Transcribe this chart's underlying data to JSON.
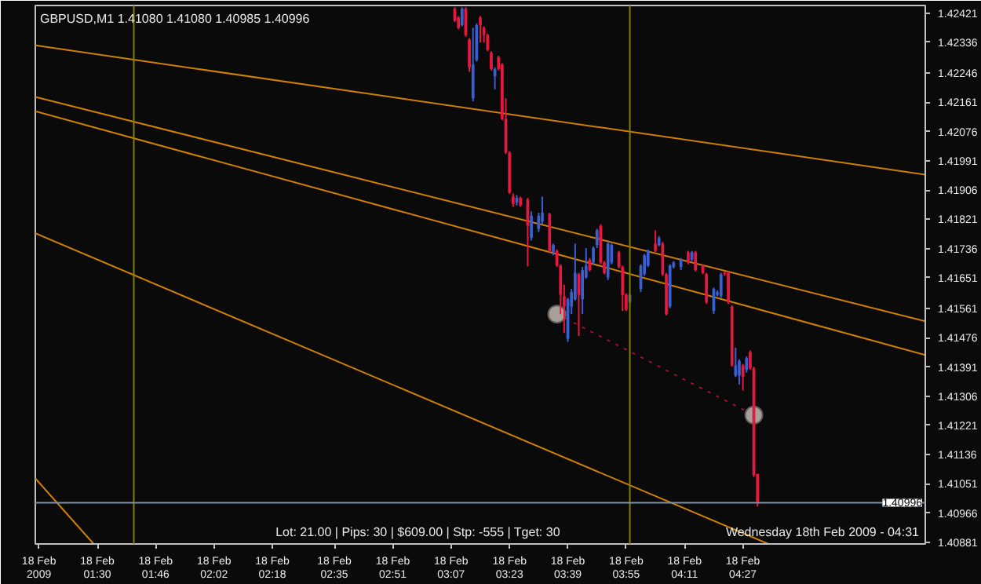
{
  "chart_data": {
    "type": "candlestick",
    "title": "GBPUSD,M1 1.41080 1.41080 1.40985 1.40996",
    "x": [
      "2009-02-18T03:08",
      "2009-02-18T03:09",
      "2009-02-18T03:10",
      "2009-02-18T03:11",
      "2009-02-18T03:12",
      "2009-02-18T03:13",
      "2009-02-18T03:14",
      "2009-02-18T03:15",
      "2009-02-18T03:16",
      "2009-02-18T03:17",
      "2009-02-18T03:18",
      "2009-02-18T03:19",
      "2009-02-18T03:20",
      "2009-02-18T03:21",
      "2009-02-18T03:22",
      "2009-02-18T03:23",
      "2009-02-18T03:24",
      "2009-02-18T03:25",
      "2009-02-18T03:26",
      "2009-02-18T03:28",
      "2009-02-18T03:29",
      "2009-02-18T03:31",
      "2009-02-18T03:32",
      "2009-02-18T03:34",
      "2009-02-18T03:35",
      "2009-02-18T03:36",
      "2009-02-18T03:37",
      "2009-02-18T03:38",
      "2009-02-18T03:39",
      "2009-02-18T03:40",
      "2009-02-18T03:41",
      "2009-02-18T03:42",
      "2009-02-18T03:43",
      "2009-02-18T03:44",
      "2009-02-18T03:45",
      "2009-02-18T03:46",
      "2009-02-18T03:47",
      "2009-02-18T03:48",
      "2009-02-18T03:49",
      "2009-02-18T03:50",
      "2009-02-18T03:51",
      "2009-02-18T03:53",
      "2009-02-18T03:54",
      "2009-02-18T03:55",
      "2009-02-18T03:56",
      "2009-02-18T03:59",
      "2009-02-18T04:00",
      "2009-02-18T04:01",
      "2009-02-18T04:03",
      "2009-02-18T04:04",
      "2009-02-18T04:05",
      "2009-02-18T04:06",
      "2009-02-18T04:07",
      "2009-02-18T04:08",
      "2009-02-18T04:10",
      "2009-02-18T04:12",
      "2009-02-18T04:13",
      "2009-02-18T04:14",
      "2009-02-18T04:16",
      "2009-02-18T04:17",
      "2009-02-18T04:19",
      "2009-02-18T04:20",
      "2009-02-18T04:21",
      "2009-02-18T04:22",
      "2009-02-18T04:23",
      "2009-02-18T04:24",
      "2009-02-18T04:25",
      "2009-02-18T04:26",
      "2009-02-18T04:27",
      "2009-02-18T04:28",
      "2009-02-18T04:29",
      "2009-02-18T04:30",
      "2009-02-18T04:31"
    ],
    "ohlc": [
      [
        1.42433,
        1.42438,
        1.42395,
        1.42399
      ],
      [
        1.42408,
        1.42412,
        1.42374,
        1.42378
      ],
      [
        1.42386,
        1.42438,
        1.42382,
        1.42433
      ],
      [
        1.42433,
        1.42438,
        1.42352,
        1.42357
      ],
      [
        1.42344,
        1.42348,
        1.4225,
        1.42263
      ],
      [
        1.42173,
        1.42378,
        1.42164,
        1.42271
      ],
      [
        1.42284,
        1.42391,
        1.4228,
        1.42386
      ],
      [
        1.42408,
        1.42412,
        1.42335,
        1.42386
      ],
      [
        1.42378,
        1.42382,
        1.42335,
        1.42357
      ],
      [
        1.42357,
        1.42361,
        1.4231,
        1.42314
      ],
      [
        1.42305,
        1.4231,
        1.42254,
        1.42258
      ],
      [
        1.42237,
        1.42263,
        1.42199,
        1.42258
      ],
      [
        1.42293,
        1.42297,
        1.42254,
        1.42258
      ],
      [
        1.42271,
        1.42275,
        1.42109,
        1.42113
      ],
      [
        1.42113,
        1.42173,
        1.42011,
        1.42015
      ],
      [
        1.42015,
        1.42019,
        1.41895,
        1.41899
      ],
      [
        1.41887,
        1.41896,
        1.41857,
        1.41865
      ],
      [
        1.4187,
        1.41891,
        1.41861,
        1.41883
      ],
      [
        1.41883,
        1.41887,
        1.41857,
        1.41861
      ],
      [
        1.41878,
        1.41883,
        1.41684,
        1.41802
      ],
      [
        1.41767,
        1.41844,
        1.41759,
        1.41831
      ],
      [
        1.41793,
        1.4184,
        1.41784,
        1.41831
      ],
      [
        1.41814,
        1.41887,
        1.41806,
        1.4184
      ],
      [
        1.41836,
        1.4184,
        1.41725,
        1.41729
      ],
      [
        1.41725,
        1.4175,
        1.41716,
        1.41746
      ],
      [
        1.41729,
        1.41733,
        1.41682,
        1.41686
      ],
      [
        1.41686,
        1.4169,
        1.41545,
        1.41601
      ],
      [
        1.41597,
        1.41631,
        1.4149,
        1.41567
      ],
      [
        1.41473,
        1.41592,
        1.41464,
        1.41588
      ],
      [
        1.41567,
        1.41618,
        1.41545,
        1.41609
      ],
      [
        1.41588,
        1.4175,
        1.41584,
        1.41665
      ],
      [
        1.41661,
        1.41665,
        1.41481,
        1.41601
      ],
      [
        1.41588,
        1.41682,
        1.41545,
        1.41673
      ],
      [
        1.41652,
        1.41737,
        1.41648,
        1.41686
      ],
      [
        1.41703,
        1.41708,
        1.41669,
        1.41673
      ],
      [
        1.41695,
        1.41742,
        1.4169,
        1.41737
      ],
      [
        1.41746,
        1.41793,
        1.41737,
        1.41789
      ],
      [
        1.41802,
        1.41806,
        1.4169,
        1.41695
      ],
      [
        1.41695,
        1.41699,
        1.41661,
        1.41665
      ],
      [
        1.41652,
        1.41755,
        1.41644,
        1.4175
      ],
      [
        1.41695,
        1.4175,
        1.4169,
        1.41746
      ],
      [
        1.41725,
        1.41729,
        1.41678,
        1.41682
      ],
      [
        1.41682,
        1.41686,
        1.41554,
        1.41601
      ],
      [
        1.41601,
        1.41605,
        1.41554,
        1.41558
      ],
      [
        1.4158,
        1.41605,
        1.41575,
        1.41601
      ],
      [
        1.41618,
        1.4169,
        1.41609,
        1.41686
      ],
      [
        1.41661,
        1.4172,
        1.41656,
        1.41716
      ],
      [
        1.41686,
        1.41733,
        1.41682,
        1.41729
      ],
      [
        1.4175,
        1.41789,
        1.41725,
        1.41729
      ],
      [
        1.41746,
        1.41772,
        1.41742,
        1.41767
      ],
      [
        1.4175,
        1.41755,
        1.41656,
        1.41661
      ],
      [
        1.41661,
        1.41665,
        1.41541,
        1.41545
      ],
      [
        1.41567,
        1.4169,
        1.41562,
        1.41686
      ],
      [
        1.41682,
        1.41699,
        1.41678,
        1.41695
      ],
      [
        1.41682,
        1.41708,
        1.41673,
        1.41703
      ],
      [
        1.41725,
        1.41729,
        1.4169,
        1.41695
      ],
      [
        1.41703,
        1.41729,
        1.41699,
        1.41725
      ],
      [
        1.41725,
        1.41729,
        1.41669,
        1.41673
      ],
      [
        1.41686,
        1.4169,
        1.41661,
        1.41665
      ],
      [
        1.41661,
        1.41665,
        1.41575,
        1.4158
      ],
      [
        1.41554,
        1.41622,
        1.41545,
        1.41618
      ],
      [
        1.41601,
        1.41614,
        1.41597,
        1.41609
      ],
      [
        1.41597,
        1.41665,
        1.41592,
        1.41661
      ],
      [
        1.41665,
        1.41669,
        1.41656,
        1.41661
      ],
      [
        1.41665,
        1.41669,
        1.41575,
        1.4158
      ],
      [
        1.41567,
        1.41571,
        1.41392,
        1.41396
      ],
      [
        1.41366,
        1.41447,
        1.41362,
        1.41396
      ],
      [
        1.41366,
        1.41413,
        1.4134,
        1.41409
      ],
      [
        1.41396,
        1.414,
        1.41323,
        1.41362
      ],
      [
        1.41383,
        1.41422,
        1.41375,
        1.41417
      ],
      [
        1.41434,
        1.41439,
        1.41383,
        1.41387
      ],
      [
        1.41387,
        1.41392,
        1.41071,
        1.41076
      ],
      [
        1.4108,
        1.4108,
        1.40985,
        1.40996
      ]
    ],
    "colors": [
      "#e8173f",
      "#e8173f",
      "#3a5fd0",
      "#e8173f",
      "#e8173f",
      "#3a5fd0",
      "#3a5fd0",
      "#e8173f",
      "#e8173f",
      "#e8173f",
      "#e8173f",
      "#3a5fd0",
      "#e8173f",
      "#e8173f",
      "#e8173f",
      "#e8173f",
      "#e8173f",
      "#3a5fd0",
      "#e8173f",
      "#e8173f",
      "#3a5fd0",
      "#3a5fd0",
      "#3a5fd0",
      "#e8173f",
      "#3a5fd0",
      "#e8173f",
      "#e8173f",
      "#e8173f",
      "#3a5fd0",
      "#3a5fd0",
      "#3a5fd0",
      "#e8173f",
      "#3a5fd0",
      "#3a5fd0",
      "#e8173f",
      "#3a5fd0",
      "#3a5fd0",
      "#e8173f",
      "#e8173f",
      "#3a5fd0",
      "#3a5fd0",
      "#e8173f",
      "#e8173f",
      "#e8173f",
      "#3a5fd0",
      "#3a5fd0",
      "#3a5fd0",
      "#3a5fd0",
      "#e8173f",
      "#3a5fd0",
      "#e8173f",
      "#e8173f",
      "#3a5fd0",
      "#3a5fd0",
      "#3a5fd0",
      "#e8173f",
      "#3a5fd0",
      "#e8173f",
      "#e8173f",
      "#e8173f",
      "#3a5fd0",
      "#3a5fd0",
      "#3a5fd0",
      "#e8173f",
      "#e8173f",
      "#e8173f",
      "#3a5fd0",
      "#3a5fd0",
      "#e8173f",
      "#3a5fd0",
      "#e8173f",
      "#e8173f",
      "#e8173f"
    ],
    "series": [
      {
        "type": "line",
        "color": "#d08000",
        "x": [
          "2009-02-18T01:13",
          "2009-02-18T05:17"
        ],
        "values": [
          1.42327,
          1.41951
        ]
      },
      {
        "type": "line",
        "color": "#d08000",
        "x": [
          "2009-02-18T01:13",
          "2009-02-18T05:17"
        ],
        "values": [
          1.42177,
          1.41524
        ]
      },
      {
        "type": "line",
        "color": "#d08000",
        "x": [
          "2009-02-18T01:13",
          "2009-02-18T05:17"
        ],
        "values": [
          1.42135,
          1.41426
        ]
      },
      {
        "type": "line",
        "color": "#d08000",
        "x": [
          "2009-02-18T01:13",
          "2009-02-18T04:34"
        ],
        "values": [
          1.4178,
          1.40876
        ]
      },
      {
        "type": "line",
        "color": "#d08000",
        "x": [
          "2009-02-18T01:13",
          "2009-02-18T01:29"
        ],
        "values": [
          1.41067,
          1.40876
        ]
      },
      {
        "type": "line",
        "color": "#a01030",
        "line_style": "dotted",
        "x": [
          "2009-02-18T03:36",
          "2009-02-18T04:30"
        ],
        "values": [
          1.41545,
          1.41251
        ]
      },
      {
        "type": "scatter",
        "color": "#a8a098",
        "marker": "circle",
        "x": [
          "2009-02-18T03:36",
          "2009-02-18T04:30"
        ],
        "values": [
          1.41545,
          1.41251
        ]
      }
    ],
    "xlim": [
      "2009-02-18T01:13",
      "2009-02-18T05:17"
    ],
    "xticks": [
      {
        "value": "2009-02-18T01:14",
        "label": "18 Feb 2009"
      },
      {
        "value": "2009-02-18T01:30",
        "label": "18 Feb 01:30"
      },
      {
        "value": "2009-02-18T01:46",
        "label": "18 Feb 01:46"
      },
      {
        "value": "2009-02-18T02:02",
        "label": "18 Feb 02:02"
      },
      {
        "value": "2009-02-18T02:18",
        "label": "18 Feb 02:18"
      },
      {
        "value": "2009-02-18T02:35",
        "label": "18 Feb 02:35"
      },
      {
        "value": "2009-02-18T02:51",
        "label": "18 Feb 02:51"
      },
      {
        "value": "2009-02-18T03:07",
        "label": "18 Feb 03:07"
      },
      {
        "value": "2009-02-18T03:23",
        "label": "18 Feb 03:23"
      },
      {
        "value": "2009-02-18T03:39",
        "label": "18 Feb 03:39"
      },
      {
        "value": "2009-02-18T03:55",
        "label": "18 Feb 03:55"
      },
      {
        "value": "2009-02-18T04:11",
        "label": "18 Feb 04:11"
      },
      {
        "value": "2009-02-18T04:27",
        "label": "18 Feb 04:27"
      }
    ],
    "ylim": [
      1.40876,
      1.42443
    ],
    "yticks": [
      1.42421,
      1.42336,
      1.42246,
      1.42161,
      1.42076,
      1.41991,
      1.41906,
      1.41821,
      1.41736,
      1.41651,
      1.41561,
      1.41476,
      1.41391,
      1.41306,
      1.41221,
      1.41136,
      1.41051,
      1.40966,
      1.40881
    ],
    "ref_lines": [
      {
        "axis": "x",
        "value": "2009-02-18T01:40",
        "color": "#808000"
      },
      {
        "axis": "x",
        "value": "2009-02-18T03:56",
        "color": "#808000"
      },
      {
        "axis": "y",
        "value": 1.40996,
        "label": "1.40996",
        "color": "#8090a8"
      }
    ],
    "annotations": [
      "Lot: 21.00 | Pips: 30 | $609.00 | Stp: -555 | Tget: 30",
      "Wednesday 18th Feb 2009 - 04:31"
    ],
    "grid": false
  }
}
